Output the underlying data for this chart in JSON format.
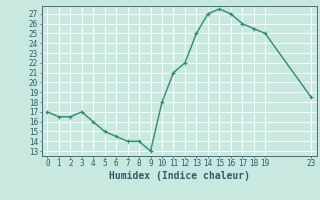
{
  "x": [
    0,
    1,
    2,
    3,
    4,
    5,
    6,
    7,
    8,
    9,
    10,
    11,
    12,
    13,
    14,
    15,
    16,
    17,
    18,
    19,
    23
  ],
  "y": [
    17,
    16.5,
    16.5,
    17,
    16,
    15,
    14.5,
    14,
    14,
    13,
    18,
    21,
    22,
    25,
    27,
    27.5,
    27,
    26,
    25.5,
    25,
    18.5
  ],
  "line_color": "#2e8b74",
  "marker": "+",
  "marker_size": 3,
  "marker_linewidth": 0.8,
  "xlabel": "Humidex (Indice chaleur)",
  "ylabel": "",
  "xlim": [
    -0.5,
    23.5
  ],
  "ylim": [
    12.5,
    27.8
  ],
  "yticks": [
    13,
    14,
    15,
    16,
    17,
    18,
    19,
    20,
    21,
    22,
    23,
    24,
    25,
    26,
    27
  ],
  "xticks": [
    0,
    1,
    2,
    3,
    4,
    5,
    6,
    7,
    8,
    9,
    10,
    11,
    12,
    13,
    14,
    15,
    16,
    17,
    18,
    19,
    23
  ],
  "xtick_labels": [
    "0",
    "1",
    "2",
    "3",
    "4",
    "5",
    "6",
    "7",
    "8",
    "9",
    "10",
    "11",
    "12",
    "13",
    "14",
    "15",
    "16",
    "17",
    "18",
    "19",
    "23"
  ],
  "bg_color": "#c8e8e0",
  "grid_color": "#ffffff",
  "axis_color": "#2e5d6e",
  "xlabel_fontsize": 7,
  "tick_fontsize": 5.5,
  "linewidth": 1.0
}
